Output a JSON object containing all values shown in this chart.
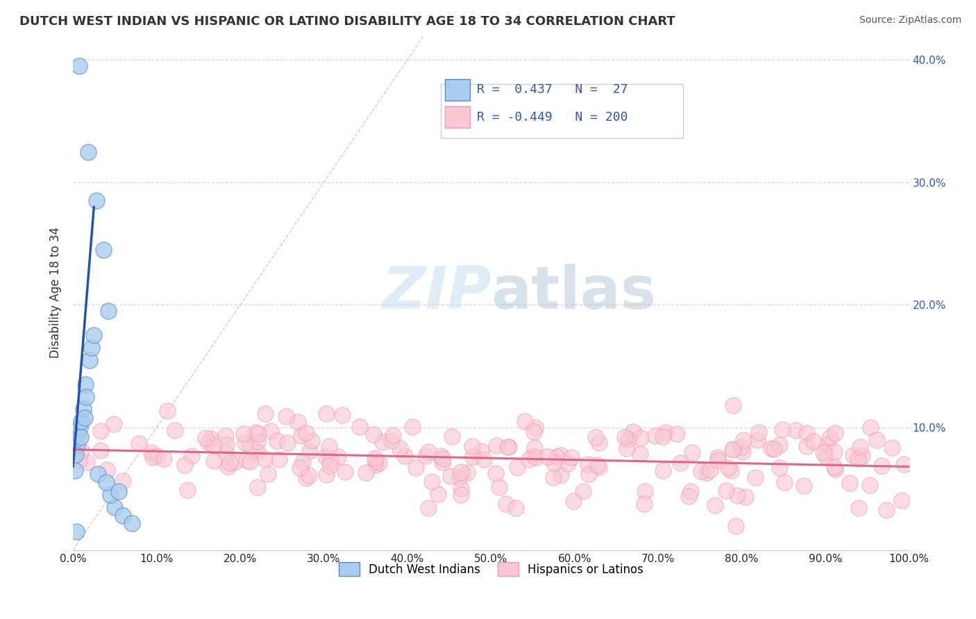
{
  "title": "DUTCH WEST INDIAN VS HISPANIC OR LATINO DISABILITY AGE 18 TO 34 CORRELATION CHART",
  "source": "Source: ZipAtlas.com",
  "ylabel": "Disability Age 18 to 34",
  "xlim": [
    0,
    1.0
  ],
  "ylim": [
    0,
    0.42
  ],
  "xticks": [
    0.0,
    0.1,
    0.2,
    0.3,
    0.4,
    0.5,
    0.6,
    0.7,
    0.8,
    0.9,
    1.0
  ],
  "xticklabels": [
    "0.0%",
    "10.0%",
    "20.0%",
    "30.0%",
    "40.0%",
    "50.0%",
    "60.0%",
    "70.0%",
    "80.0%",
    "90.0%",
    "100.0%"
  ],
  "yticks": [
    0.0,
    0.1,
    0.2,
    0.3,
    0.4
  ],
  "ylabels_right": [
    "",
    "10.0%",
    "20.0%",
    "30.0%",
    "40.0%"
  ],
  "blue_R": 0.437,
  "blue_N": 27,
  "pink_R": -0.449,
  "pink_N": 200,
  "legend_label_blue": "Dutch West Indians",
  "legend_label_pink": "Hispanics or Latinos",
  "blue_color": "#aaccee",
  "blue_edge_color": "#5588cc",
  "blue_line_color": "#2255aa",
  "pink_color": "#f8c8d4",
  "pink_edge_color": "#ee99aa",
  "pink_line_color": "#dd6688",
  "grid_color": "#cccccc",
  "background_color": "#ffffff",
  "text_color": "#3355aa",
  "blue_trend_x": [
    0.0,
    0.025
  ],
  "blue_trend_y": [
    0.068,
    0.28
  ],
  "pink_trend_x": [
    0.0,
    1.0
  ],
  "pink_trend_y": [
    0.082,
    0.068
  ],
  "ref_line_x": [
    0.0,
    0.42
  ],
  "ref_line_y": [
    0.0,
    0.42
  ]
}
